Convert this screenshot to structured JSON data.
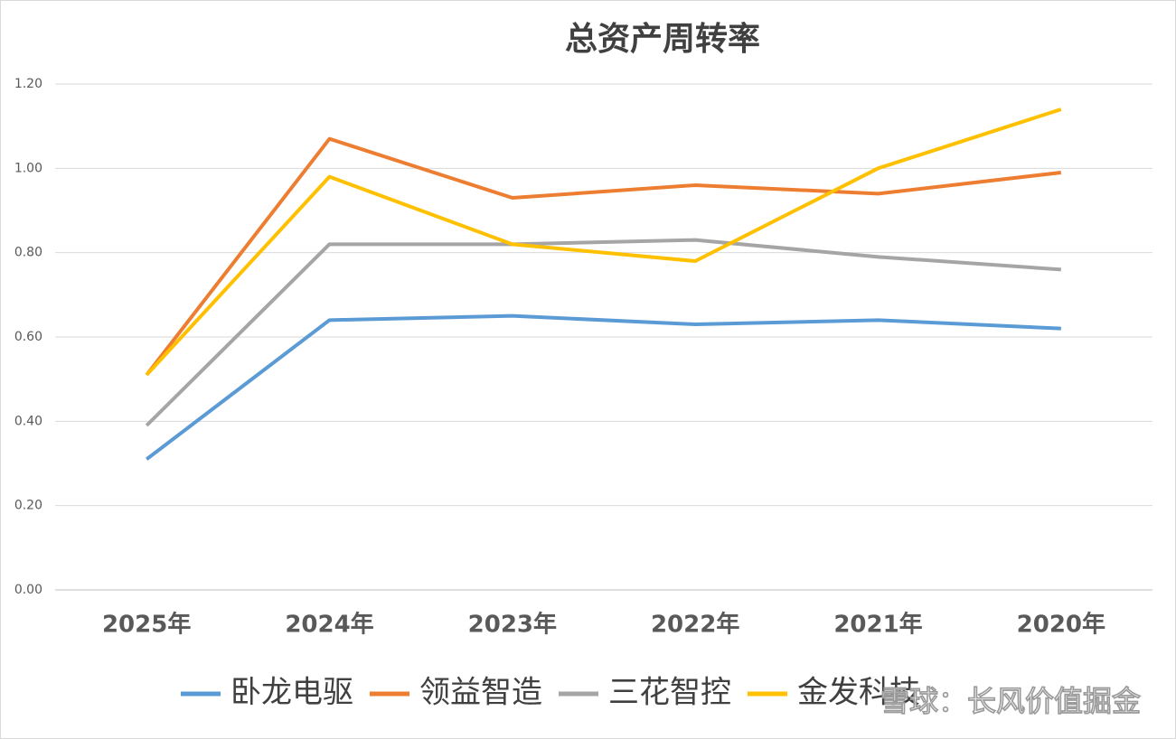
{
  "chart_data": {
    "type": "line",
    "title": "总资产周转率",
    "categories": [
      "2025年",
      "2024年",
      "2023年",
      "2022年",
      "2021年",
      "2020年"
    ],
    "series": [
      {
        "name": "卧龙电驱",
        "color": "#5b9bd5",
        "values": [
          0.31,
          0.64,
          0.65,
          0.63,
          0.64,
          0.62
        ]
      },
      {
        "name": "领益智造",
        "color": "#ed7d31",
        "values": [
          0.51,
          1.07,
          0.93,
          0.96,
          0.94,
          0.99
        ]
      },
      {
        "name": "三花智控",
        "color": "#a5a5a5",
        "values": [
          0.39,
          0.82,
          0.82,
          0.83,
          0.79,
          0.76
        ]
      },
      {
        "name": "金发科技",
        "color": "#ffc000",
        "values": [
          0.51,
          0.98,
          0.82,
          0.78,
          1.0,
          1.14
        ]
      }
    ],
    "ylim": [
      0,
      1.2
    ],
    "yticks": [
      {
        "value": 0,
        "label": "0.00"
      },
      {
        "value": 0.2,
        "label": "0.20"
      },
      {
        "value": 0.4,
        "label": "0.40"
      },
      {
        "value": 0.6,
        "label": "0.60"
      },
      {
        "value": 0.8,
        "label": "0.80"
      },
      {
        "value": 1.0,
        "label": "1.00"
      },
      {
        "value": 1.2,
        "label": "1.20"
      }
    ],
    "grid": true,
    "legend": "bottom",
    "watermark": "雪球：长风价值掘金"
  }
}
